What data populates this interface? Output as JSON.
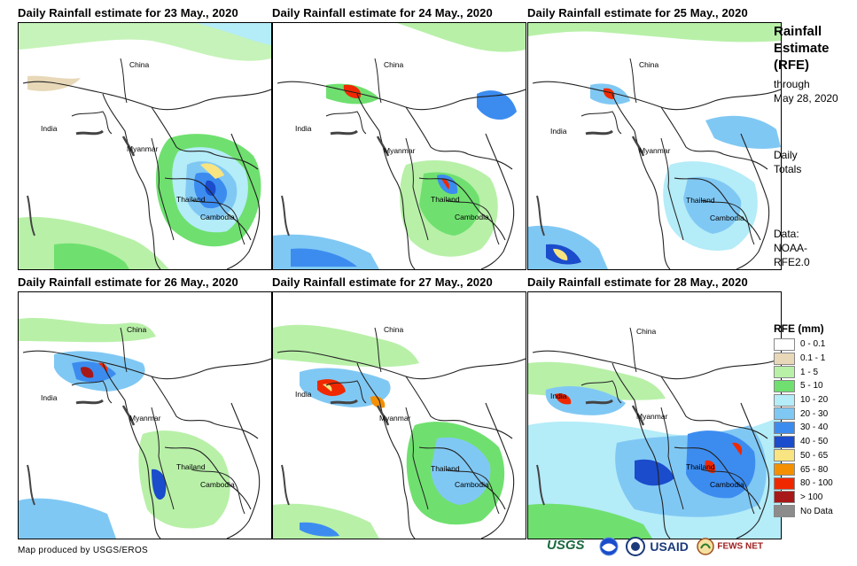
{
  "panels": [
    {
      "title": "Daily Rainfall estimate for 23 May., 2020"
    },
    {
      "title": "Daily Rainfall estimate for 24 May., 2020"
    },
    {
      "title": "Daily Rainfall estimate for 25 May., 2020"
    },
    {
      "title": "Daily Rainfall estimate for 26 May., 2020"
    },
    {
      "title": "Daily Rainfall estimate for 27 May., 2020"
    },
    {
      "title": "Daily Rainfall estimate for 28 May., 2020"
    }
  ],
  "country_labels": {
    "china": "China",
    "india": "India",
    "myanmar": "Myanmar",
    "thailand": "Thailand",
    "cambodia": "Cambodia"
  },
  "sidebar": {
    "title_line1": "Rainfall",
    "title_line2": "Estimate",
    "title_line3": "(RFE)",
    "through_label": "through",
    "through_date": "May 28, 2020",
    "daily_line1": "Daily",
    "daily_line2": "Totals",
    "data_line1": "Data:",
    "data_line2": "NOAA-",
    "data_line3": "RFE2.0"
  },
  "legend": {
    "title": "RFE (mm)",
    "items": [
      {
        "label": "0 - 0.1",
        "color": "#ffffff"
      },
      {
        "label": "0.1 - 1",
        "color": "#e8d8b8"
      },
      {
        "label": "1 - 5",
        "color": "#b8f0a8"
      },
      {
        "label": "5 - 10",
        "color": "#6fe06f"
      },
      {
        "label": "10 - 20",
        "color": "#b4ecf8"
      },
      {
        "label": "20 - 30",
        "color": "#80c8f4"
      },
      {
        "label": "30 - 40",
        "color": "#3c8cf0"
      },
      {
        "label": "40 - 50",
        "color": "#1a4ccc"
      },
      {
        "label": "50 - 65",
        "color": "#f8e480"
      },
      {
        "label": "65 - 80",
        "color": "#f49000"
      },
      {
        "label": "80 - 100",
        "color": "#f02800"
      },
      {
        "label": "> 100",
        "color": "#a81818"
      },
      {
        "label": "No Data",
        "color": "#8c8c8c"
      }
    ]
  },
  "footer": {
    "credit": "Map produced by USGS/EROS",
    "logo_usgs": "USGS",
    "logo_usaid": "USAID",
    "logo_fews": "FEWS NET"
  }
}
